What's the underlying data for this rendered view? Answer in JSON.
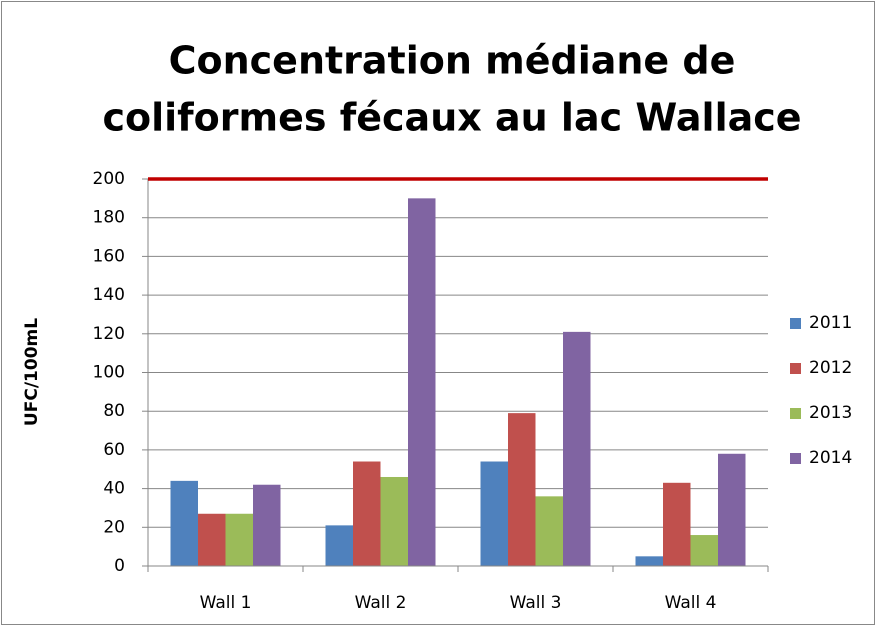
{
  "chart_data": {
    "type": "bar",
    "title": [
      "Concentration médiane de",
      "coliformes fécaux au lac Wallace"
    ],
    "y_label": "UFC/100mL",
    "categories": [
      "Wall 1",
      "Wall 2",
      "Wall 3",
      "Wall 4"
    ],
    "series": [
      {
        "name": "2011",
        "color": "#4f81bd",
        "values": [
          44,
          21,
          54,
          5
        ]
      },
      {
        "name": "2012",
        "color": "#c0504d",
        "values": [
          27,
          54,
          79,
          43
        ]
      },
      {
        "name": "2013",
        "color": "#9bbb59",
        "values": [
          27,
          46,
          36,
          16
        ]
      },
      {
        "name": "2014",
        "color": "#8064a2",
        "values": [
          42,
          190,
          121,
          58
        ]
      }
    ],
    "reference_line": {
      "value": 200,
      "color": "#c00000"
    },
    "ylim": [
      0,
      200
    ],
    "yticks": [
      0,
      20,
      40,
      60,
      80,
      100,
      120,
      140,
      160,
      180,
      200
    ],
    "grid": true,
    "legend": "right"
  }
}
